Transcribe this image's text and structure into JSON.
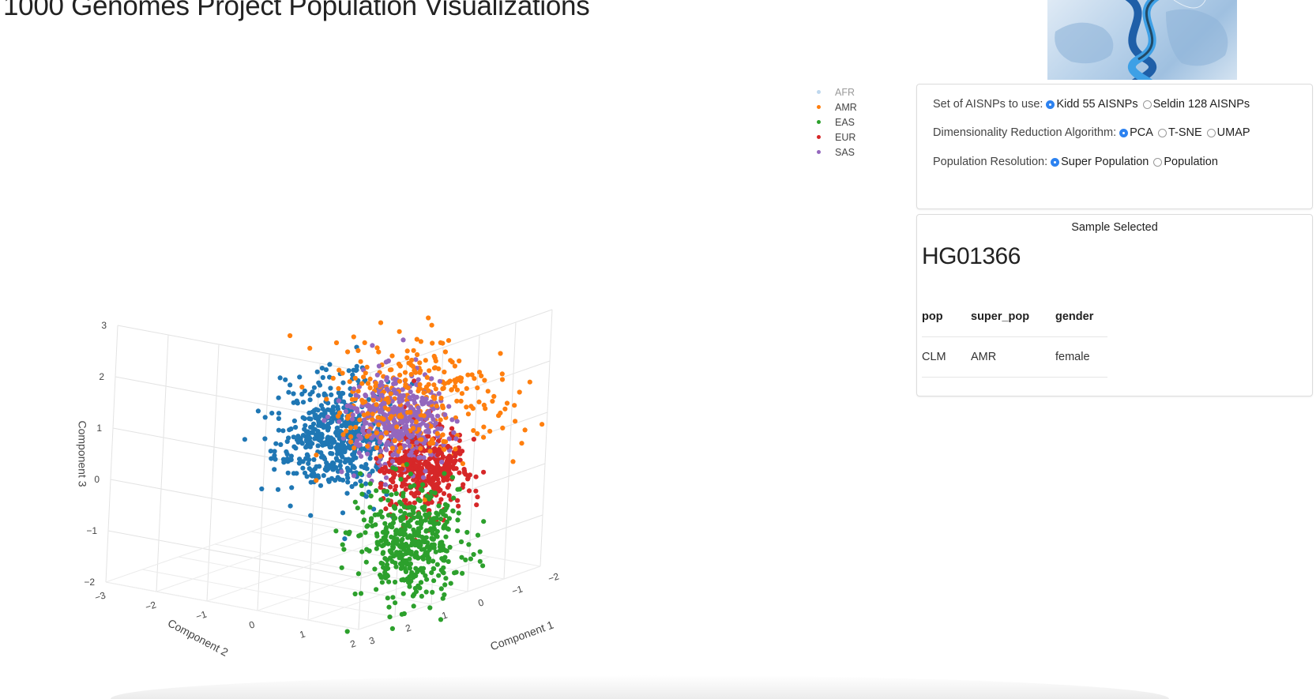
{
  "title": "1000 Genomes Project Population Visualizations",
  "logo": {
    "icon": "dna-world-map-logo"
  },
  "controls": {
    "aisnp": {
      "label": "Set of AISNPs to use:",
      "options": [
        "Kidd 55 AISNPs",
        "Seldin 128 AISNPs"
      ],
      "selected": "Kidd 55 AISNPs"
    },
    "algorithm": {
      "label": "Dimensionality Reduction Algorithm:",
      "options": [
        "PCA",
        "T-SNE",
        "UMAP"
      ],
      "selected": "PCA"
    },
    "resolution": {
      "label": "Population Resolution:",
      "options": [
        "Super Population",
        "Population"
      ],
      "selected": "Super Population"
    }
  },
  "sample": {
    "header": "Sample Selected",
    "id": "HG01366",
    "columns": [
      "pop",
      "super_pop",
      "gender"
    ],
    "row": [
      "CLM",
      "AMR",
      "female"
    ]
  },
  "chart_data": {
    "type": "scatter",
    "dimensions": 3,
    "xlabel": "Component 1",
    "ylabel": "Component 2",
    "zlabel": "Component 3",
    "x_ticks": [
      "−2",
      "−1",
      "0",
      "1",
      "2",
      "3"
    ],
    "y_ticks": [
      "−3",
      "−2",
      "−1",
      "0",
      "1",
      "2"
    ],
    "z_ticks": [
      "−2",
      "−1",
      "0",
      "1",
      "2",
      "3"
    ],
    "legend": [
      {
        "name": "AFR",
        "color": "#7fb2de",
        "hidden": true
      },
      {
        "name": "AMR",
        "color": "#ff7f0e",
        "hidden": false
      },
      {
        "name": "EAS",
        "color": "#2ca02c",
        "hidden": false
      },
      {
        "name": "EUR",
        "color": "#d62728",
        "hidden": false
      },
      {
        "name": "SAS",
        "color": "#9467bd",
        "hidden": false
      }
    ],
    "visible_clusters": [
      {
        "color": "#1f77b4",
        "n": 520,
        "center": [
          -1.6,
          -1.8,
          -0.1
        ],
        "spread": [
          0.45,
          0.5,
          0.55
        ]
      },
      {
        "color": "#2ca02c",
        "n": 460,
        "center": [
          1.8,
          2.1,
          -0.6
        ],
        "spread": [
          0.35,
          0.45,
          0.55
        ]
      },
      {
        "color": "#d62728",
        "n": 440,
        "center": [
          -0.3,
          0.8,
          0.1
        ],
        "spread": [
          0.3,
          0.35,
          0.4
        ]
      },
      {
        "color": "#ff7f0e",
        "n": 300,
        "center": [
          0.2,
          0.9,
          1.6
        ],
        "spread": [
          0.55,
          0.75,
          0.6
        ]
      },
      {
        "color": "#9467bd",
        "n": 420,
        "center": [
          0.2,
          0.6,
          1.1
        ],
        "spread": [
          0.3,
          0.4,
          0.45
        ]
      }
    ]
  }
}
